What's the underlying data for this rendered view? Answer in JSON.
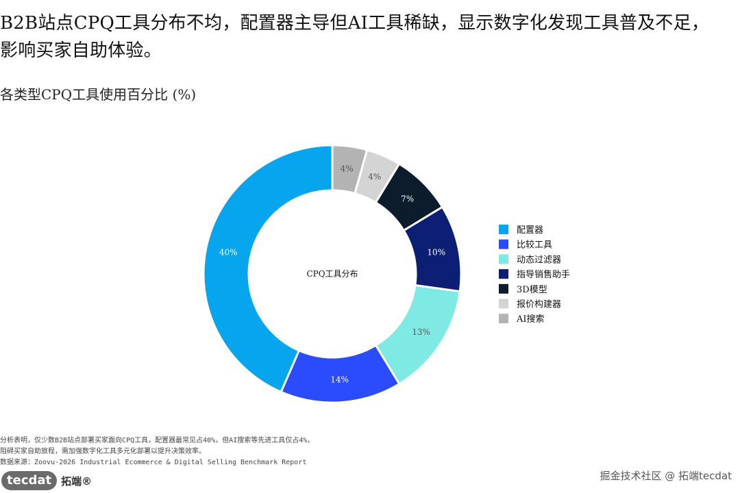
{
  "headline": {
    "line1": "B2B站点CPQ工具分布不均，配置器主导但AI工具稀缺，显示数字化发现工具普及不足，",
    "line2": "影响买家自助体验。"
  },
  "subtitle": "各类型CPQ工具使用百分比 (%)",
  "chart_data": {
    "type": "pie",
    "variant": "donut",
    "center_label": "CPQ工具分布",
    "legend_position": "right",
    "slices": [
      {
        "label": "AI搜索",
        "value": 4,
        "display": "4%",
        "color": "#b3b3b3"
      },
      {
        "label": "报价构建器",
        "value": 4,
        "display": "4%",
        "color": "#d4d4d4"
      },
      {
        "label": "3D模型",
        "value": 7,
        "display": "7%",
        "color": "#0c1c2c"
      },
      {
        "label": "指导销售助手",
        "value": 10,
        "display": "10%",
        "color": "#0d1f75"
      },
      {
        "label": "动态过滤器",
        "value": 13,
        "display": "13%",
        "color": "#7eeae3"
      },
      {
        "label": "比较工具",
        "value": 14,
        "display": "14%",
        "color": "#2a4cfc"
      },
      {
        "label": "配置器",
        "value": 40,
        "display": "40%",
        "color": "#06a5ee"
      }
    ],
    "legend": [
      {
        "label": "配置器",
        "color": "#06a5ee"
      },
      {
        "label": "比较工具",
        "color": "#2a4cfc"
      },
      {
        "label": "动态过滤器",
        "color": "#7eeae3"
      },
      {
        "label": "指导销售助手",
        "color": "#0d1f75"
      },
      {
        "label": "3D模型",
        "color": "#0c1c2c"
      },
      {
        "label": "报价构建器",
        "color": "#d4d4d4"
      },
      {
        "label": "AI搜索",
        "color": "#b3b3b3"
      }
    ]
  },
  "footer": {
    "note1": "分析表明，仅少数B2B站点部署买家面向CPQ工具，配置器最常见占40%，但AI搜索等先进工具仅占4%，",
    "note2": "阻碍买家自助旅程，需加强数字化工具多元化部署以提升决策效率。",
    "source": "数据来源：Zoovu-2026 Industrial Ecommerce & Digital Selling Benchmark Report"
  },
  "brand": {
    "badge": "tecdat",
    "name": "拓端®"
  },
  "watermark": "掘金技术社区 @ 拓端tecdat"
}
